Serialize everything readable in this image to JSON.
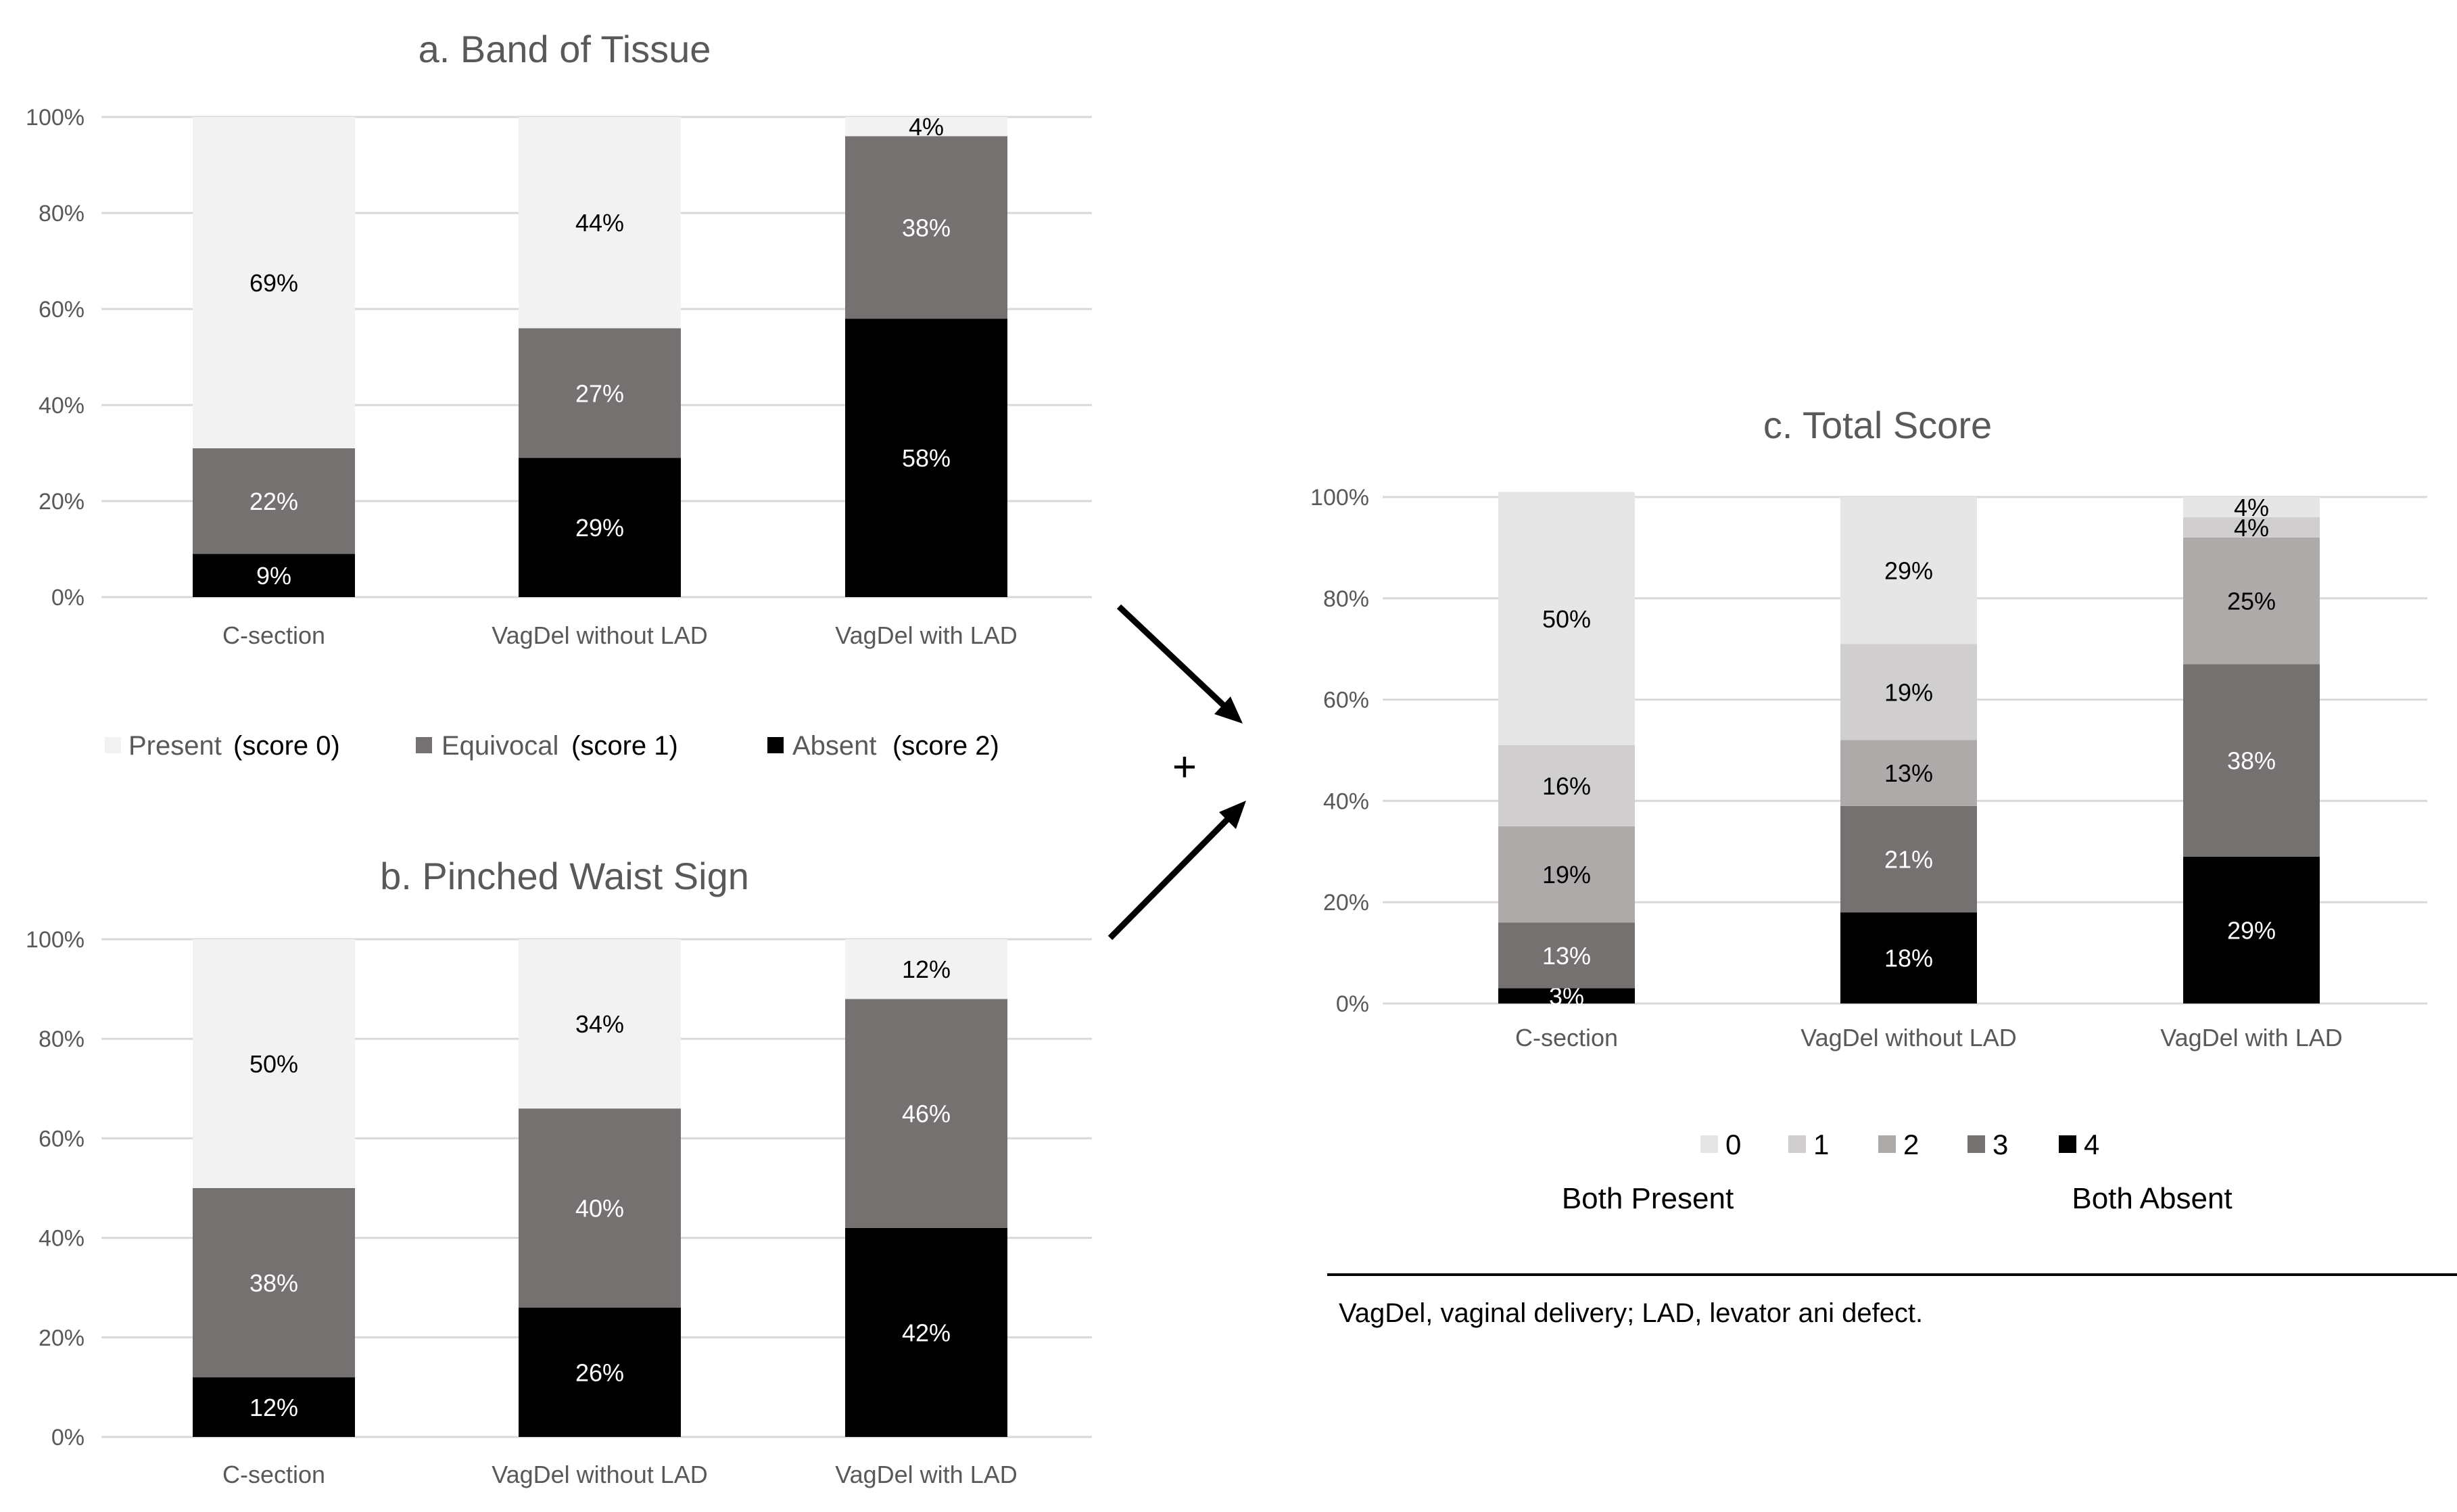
{
  "colors": {
    "present": "#f2f2f2",
    "equivocal": "#767171",
    "absent": "#000000",
    "score0": "#e7e6e6",
    "score1": "#d0cece",
    "score2": "#aeaaaa",
    "score3": "#767171",
    "score4": "#000000",
    "grid": "#d9d9d9",
    "axis_text": "#595959"
  },
  "connector": {
    "plus_label": "+"
  },
  "footnote": {
    "both_present": "Both Present",
    "both_absent": "Both Absent",
    "abbreviations": "VagDel, vaginal delivery; LAD, levator ani defect."
  },
  "chart_data": [
    {
      "id": "band",
      "type": "bar",
      "stacked": true,
      "title": "a. Band of Tissue",
      "categories": [
        "C-section",
        "VagDel without LAD",
        "VagDel with LAD"
      ],
      "yticks": [
        "0%",
        "20%",
        "40%",
        "60%",
        "80%",
        "100%"
      ],
      "ylim": [
        0,
        100
      ],
      "grid": true,
      "legend_position": "bottom",
      "series": [
        {
          "name": "Absent",
          "note": "(score 2)",
          "color_key": "absent",
          "values": [
            9,
            29,
            58
          ],
          "labels": [
            "9%",
            "29%",
            "58%"
          ]
        },
        {
          "name": "Equivocal",
          "note": "(score 1)",
          "color_key": "equivocal",
          "values": [
            22,
            27,
            38
          ],
          "labels": [
            "22%",
            "27%",
            "38%"
          ]
        },
        {
          "name": "Present",
          "note": "(score 0)",
          "color_key": "present",
          "values": [
            69,
            44,
            4
          ],
          "labels": [
            "69%",
            "44%",
            "4%"
          ]
        }
      ],
      "legend_order": [
        2,
        1,
        0
      ]
    },
    {
      "id": "pinched",
      "type": "bar",
      "stacked": true,
      "title": "b. Pinched Waist Sign",
      "categories": [
        "C-section",
        "VagDel without LAD",
        "VagDel with LAD"
      ],
      "yticks": [
        "0%",
        "20%",
        "40%",
        "60%",
        "80%",
        "100%"
      ],
      "ylim": [
        0,
        100
      ],
      "grid": true,
      "series": [
        {
          "color_key": "absent",
          "values": [
            12,
            26,
            42
          ],
          "labels": [
            "12%",
            "26%",
            "42%"
          ]
        },
        {
          "color_key": "equivocal",
          "values": [
            38,
            40,
            46
          ],
          "labels": [
            "38%",
            "40%",
            "46%"
          ]
        },
        {
          "color_key": "present",
          "values": [
            50,
            34,
            12
          ],
          "labels": [
            "50%",
            "34%",
            "12%"
          ]
        }
      ]
    },
    {
      "id": "total",
      "type": "bar",
      "stacked": true,
      "title": "c. Total Score",
      "categories": [
        "C-section",
        "VagDel without LAD",
        "VagDel with LAD"
      ],
      "yticks": [
        "0%",
        "20%",
        "40%",
        "60%",
        "80%",
        "100%"
      ],
      "ylim": [
        0,
        100
      ],
      "grid": true,
      "legend_position": "bottom",
      "series": [
        {
          "name": "4",
          "color_key": "score4",
          "values": [
            3,
            18,
            29
          ],
          "labels": [
            "3%",
            "18%",
            "29%"
          ]
        },
        {
          "name": "3",
          "color_key": "score3",
          "values": [
            13,
            21,
            38
          ],
          "labels": [
            "13%",
            "21%",
            "38%"
          ]
        },
        {
          "name": "2",
          "color_key": "score2",
          "values": [
            19,
            13,
            25
          ],
          "labels": [
            "19%",
            "13%",
            "25%"
          ]
        },
        {
          "name": "1",
          "color_key": "score1",
          "values": [
            16,
            19,
            4
          ],
          "labels": [
            "16%",
            "19%",
            "4%"
          ]
        },
        {
          "name": "0",
          "color_key": "score0",
          "values": [
            50,
            29,
            4
          ],
          "labels": [
            "50%",
            "29%",
            "4%"
          ]
        }
      ],
      "legend_order": [
        4,
        3,
        2,
        1,
        0
      ]
    }
  ]
}
